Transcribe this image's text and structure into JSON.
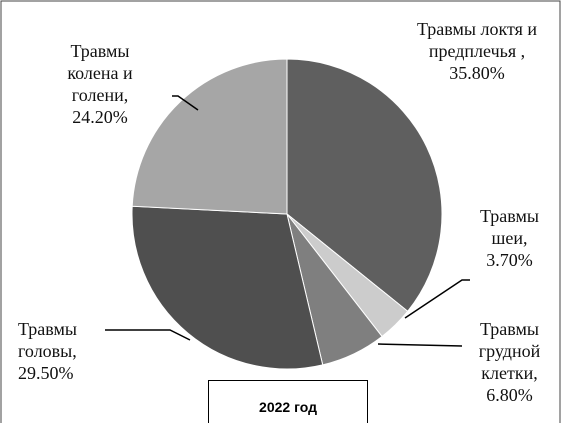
{
  "chart_data": {
    "type": "pie",
    "title": "2022 год",
    "categories": [
      "Травмы локтя и предплечья ,",
      "Травмы шеи,",
      "Травмы грудной клетки,",
      "Травмы головы,",
      "Травмы колена и голени,"
    ],
    "values": [
      35.8,
      3.7,
      6.8,
      29.5,
      24.2
    ],
    "value_labels": [
      "35.80%",
      "3.70%",
      "6.80%",
      "29.50%",
      "24.20%"
    ],
    "colors": [
      "#5f5f5f",
      "#cccccc",
      "#7f7f7f",
      "#4f4f4f",
      "#a6a6a6"
    ]
  }
}
